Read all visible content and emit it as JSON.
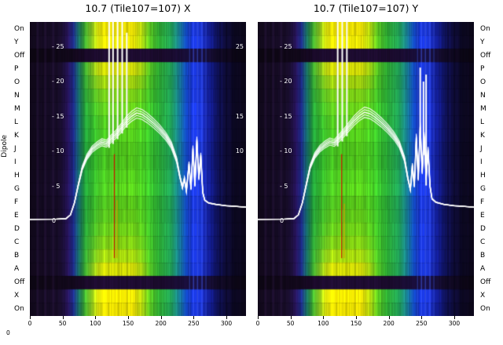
{
  "titles": {
    "left": "10.7 (Tile107=107) X",
    "right": "10.7 (Tile107=107) Y"
  },
  "axes": {
    "dipole_label": "Dipole",
    "inner_value_ticks": [
      "- 25",
      "- 20",
      "- 15",
      "- 10",
      "- 5",
      "0"
    ],
    "inner_values": [
      25,
      20,
      15,
      10,
      5,
      0
    ],
    "right_edge_values": [
      25,
      15,
      10
    ],
    "x_ticks": [
      0,
      50,
      100,
      150,
      200,
      250,
      300
    ],
    "stray_zero": "0"
  },
  "chart_data": {
    "type": "heatmap",
    "x": {
      "lim": [
        0,
        330
      ],
      "ticks": [
        0,
        50,
        100,
        150,
        200,
        250,
        300
      ]
    },
    "overlay_value_axis": {
      "ticks": [
        25,
        20,
        15,
        10,
        5,
        0
      ]
    },
    "rows": [
      {
        "label": "On",
        "type": "mix",
        "heat": 1.0
      },
      {
        "label": "Y",
        "type": "mix",
        "heat": 0.95
      },
      {
        "label": "Off",
        "type": "off",
        "heat": 0
      },
      {
        "label": "P",
        "type": "mix",
        "heat": 0.85
      },
      {
        "label": "O",
        "type": "mix",
        "heat": 0.55
      },
      {
        "label": "N",
        "type": "mix",
        "heat": 0.3
      },
      {
        "label": "M",
        "type": "mix",
        "heat": 0.18
      },
      {
        "label": "L",
        "type": "mix",
        "heat": 0.1
      },
      {
        "label": "K",
        "type": "mix",
        "heat": 0.06
      },
      {
        "label": "J",
        "type": "mix",
        "heat": 0.05
      },
      {
        "label": "I",
        "type": "mix",
        "heat": 0.05
      },
      {
        "label": "H",
        "type": "mix",
        "heat": 0.06
      },
      {
        "label": "G",
        "type": "mix",
        "heat": 0.08
      },
      {
        "label": "F",
        "type": "mix",
        "heat": 0.1
      },
      {
        "label": "E",
        "type": "mix",
        "heat": 0.15
      },
      {
        "label": "D",
        "type": "mix",
        "heat": 0.22
      },
      {
        "label": "C",
        "type": "mix",
        "heat": 0.35
      },
      {
        "label": "B",
        "type": "mix",
        "heat": 0.55
      },
      {
        "label": "A",
        "type": "mix",
        "heat": 0.85
      },
      {
        "label": "Off",
        "type": "off",
        "heat": 0
      },
      {
        "label": "X",
        "type": "mix",
        "heat": 1.0
      },
      {
        "label": "On",
        "type": "mix",
        "heat": 1.0
      }
    ],
    "gradients": {
      "mid": [
        [
          0,
          16,
          8,
          26
        ],
        [
          45,
          22,
          12,
          40
        ],
        [
          58,
          36,
          18,
          86
        ],
        [
          66,
          30,
          44,
          146
        ],
        [
          74,
          22,
          110,
          115
        ],
        [
          83,
          32,
          160,
          62
        ],
        [
          95,
          42,
          180,
          48
        ],
        [
          110,
          62,
          196,
          38
        ],
        [
          130,
          72,
          206,
          32
        ],
        [
          155,
          78,
          210,
          30
        ],
        [
          175,
          62,
          200,
          38
        ],
        [
          195,
          46,
          186,
          56
        ],
        [
          215,
          32,
          166,
          92
        ],
        [
          228,
          22,
          122,
          152
        ],
        [
          238,
          18,
          72,
          192
        ],
        [
          248,
          22,
          52,
          222
        ],
        [
          258,
          30,
          62,
          242
        ],
        [
          266,
          24,
          42,
          192
        ],
        [
          274,
          18,
          28,
          142
        ],
        [
          284,
          16,
          20,
          102
        ],
        [
          296,
          15,
          13,
          62
        ],
        [
          312,
          13,
          9,
          38
        ],
        [
          330,
          12,
          7,
          26
        ]
      ],
      "hot": [
        [
          0,
          18,
          9,
          28
        ],
        [
          45,
          24,
          13,
          42
        ],
        [
          58,
          38,
          20,
          88
        ],
        [
          66,
          32,
          48,
          150
        ],
        [
          74,
          26,
          118,
          104
        ],
        [
          83,
          64,
          182,
          52
        ],
        [
          93,
          140,
          208,
          34
        ],
        [
          103,
          215,
          224,
          12
        ],
        [
          113,
          248,
          236,
          2
        ],
        [
          140,
          255,
          242,
          0
        ],
        [
          158,
          242,
          232,
          4
        ],
        [
          170,
          185,
          218,
          14
        ],
        [
          182,
          95,
          202,
          32
        ],
        [
          196,
          52,
          188,
          54
        ],
        [
          215,
          34,
          168,
          92
        ],
        [
          228,
          24,
          124,
          152
        ],
        [
          238,
          18,
          72,
          192
        ],
        [
          248,
          22,
          52,
          222
        ],
        [
          258,
          30,
          62,
          242
        ],
        [
          266,
          24,
          42,
          192
        ],
        [
          274,
          18,
          28,
          142
        ],
        [
          284,
          16,
          20,
          102
        ],
        [
          296,
          15,
          13,
          62
        ],
        [
          312,
          13,
          9,
          38
        ],
        [
          330,
          12,
          7,
          26
        ]
      ],
      "off": [
        [
          0,
          12,
          6,
          18
        ],
        [
          60,
          17,
          8,
          26
        ],
        [
          85,
          26,
          10,
          42
        ],
        [
          120,
          32,
          13,
          52
        ],
        [
          160,
          30,
          12,
          50
        ],
        [
          200,
          28,
          11,
          46
        ],
        [
          235,
          24,
          13,
          54
        ],
        [
          258,
          26,
          18,
          76
        ],
        [
          280,
          19,
          11,
          42
        ],
        [
          330,
          10,
          5,
          16
        ]
      ]
    },
    "blue_stripes": [
      {
        "x": 243,
        "a": 0.35
      },
      {
        "x": 249,
        "a": 0.5
      },
      {
        "x": 255,
        "a": 0.45
      },
      {
        "x": 262,
        "a": 0.5
      },
      {
        "x": 268,
        "a": 0.3
      }
    ],
    "dark_stripes": [
      {
        "x": 289,
        "a": 0.3
      },
      {
        "x": 299,
        "a": 0.25
      },
      {
        "x": 308,
        "a": 0.2
      }
    ],
    "violet_stripes": [
      {
        "x": 10
      },
      {
        "x": 22
      },
      {
        "x": 34
      }
    ],
    "panels": [
      {
        "title": "10.7 (Tile107=107) X",
        "line": [
          [
            0,
            0.25
          ],
          [
            40,
            0.28
          ],
          [
            55,
            0.35
          ],
          [
            62,
            0.9
          ],
          [
            68,
            2.6
          ],
          [
            74,
            5.2
          ],
          [
            80,
            7.6
          ],
          [
            87,
            9.2
          ],
          [
            95,
            10.3
          ],
          [
            103,
            10.9
          ],
          [
            110,
            11.3
          ],
          [
            117,
            11.1
          ],
          [
            124,
            11.8
          ],
          [
            131,
            12.4
          ],
          [
            139,
            13.3
          ],
          [
            147,
            14.3
          ],
          [
            155,
            15.0
          ],
          [
            163,
            15.5
          ],
          [
            171,
            15.3
          ],
          [
            179,
            14.8
          ],
          [
            188,
            14.1
          ],
          [
            198,
            13.2
          ],
          [
            208,
            12.1
          ],
          [
            216,
            10.9
          ],
          [
            224,
            8.8
          ],
          [
            229,
            6.4
          ],
          [
            233,
            4.8
          ],
          [
            236,
            6.1
          ],
          [
            239,
            4.3
          ],
          [
            243,
            8.2
          ],
          [
            246,
            4.6
          ],
          [
            249,
            10.4
          ],
          [
            252,
            5.1
          ],
          [
            255,
            11.6
          ],
          [
            258,
            6.1
          ],
          [
            261,
            9.4
          ],
          [
            264,
            4.1
          ],
          [
            267,
            3.0
          ],
          [
            273,
            2.6
          ],
          [
            284,
            2.4
          ],
          [
            300,
            2.2
          ],
          [
            316,
            2.1
          ],
          [
            330,
            2.0
          ]
        ],
        "spikes": [
          [
            121,
            40
          ],
          [
            127,
            33
          ],
          [
            134,
            40
          ],
          [
            141,
            40
          ],
          [
            148,
            27
          ]
        ],
        "marker_segments": [
          {
            "x": 129,
            "v1": 9.6,
            "v2": -5.3,
            "color": "#cc1e00"
          },
          {
            "x": 133,
            "v1": 3.0,
            "v2": -5.3,
            "color": "#c8a000"
          }
        ]
      },
      {
        "title": "10.7 (Tile107=107) Y",
        "line": [
          [
            0,
            0.25
          ],
          [
            40,
            0.28
          ],
          [
            55,
            0.35
          ],
          [
            62,
            0.9
          ],
          [
            68,
            2.6
          ],
          [
            74,
            5.2
          ],
          [
            80,
            7.8
          ],
          [
            87,
            9.4
          ],
          [
            95,
            10.4
          ],
          [
            103,
            11.0
          ],
          [
            110,
            11.4
          ],
          [
            117,
            11.2
          ],
          [
            124,
            11.9
          ],
          [
            131,
            12.6
          ],
          [
            139,
            13.5
          ],
          [
            147,
            14.4
          ],
          [
            155,
            15.1
          ],
          [
            163,
            15.6
          ],
          [
            171,
            15.4
          ],
          [
            179,
            14.9
          ],
          [
            188,
            14.2
          ],
          [
            198,
            13.3
          ],
          [
            208,
            12.2
          ],
          [
            216,
            11.0
          ],
          [
            224,
            8.9
          ],
          [
            229,
            6.2
          ],
          [
            233,
            4.5
          ],
          [
            236,
            8.0
          ],
          [
            239,
            5.0
          ],
          [
            242,
            12.0
          ],
          [
            245,
            6.0
          ],
          [
            248,
            13.5
          ],
          [
            251,
            7.0
          ],
          [
            254,
            12.2
          ],
          [
            257,
            6.1
          ],
          [
            260,
            10.2
          ],
          [
            263,
            5.0
          ],
          [
            266,
            3.2
          ],
          [
            272,
            2.7
          ],
          [
            284,
            2.4
          ],
          [
            300,
            2.2
          ],
          [
            316,
            2.1
          ],
          [
            330,
            2.0
          ]
        ],
        "spikes": [
          [
            122,
            40
          ],
          [
            129,
            40
          ],
          [
            136,
            31
          ],
          [
            248,
            22
          ],
          [
            253,
            20
          ],
          [
            257,
            21
          ]
        ],
        "marker_segments": [
          {
            "x": 128,
            "v1": 9.6,
            "v2": -5.3,
            "color": "#cc1e00"
          },
          {
            "x": 132,
            "v1": 2.5,
            "v2": -5.3,
            "color": "#c8a000"
          }
        ]
      }
    ]
  }
}
